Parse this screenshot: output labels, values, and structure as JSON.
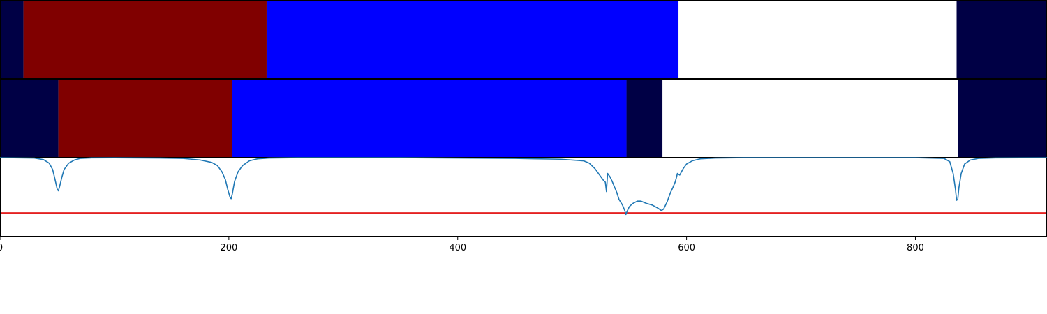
{
  "chart_data": [
    {
      "type": "heatmap",
      "name": "segmentation-a",
      "xlim": [
        0,
        915
      ],
      "segments": [
        {
          "start": 0,
          "end": 20.5,
          "color": "#000045"
        },
        {
          "start": 20.5,
          "end": 233,
          "color": "#800000"
        },
        {
          "start": 233,
          "end": 593,
          "color": "#0000ff"
        },
        {
          "start": 593,
          "end": 836,
          "color": "#ffffff"
        },
        {
          "start": 836,
          "end": 915,
          "color": "#000045"
        }
      ]
    },
    {
      "type": "heatmap",
      "name": "segmentation-b",
      "xlim": [
        0,
        915
      ],
      "segments": [
        {
          "start": 0,
          "end": 51,
          "color": "#000045"
        },
        {
          "start": 51,
          "end": 203,
          "color": "#800000"
        },
        {
          "start": 203,
          "end": 547.5,
          "color": "#0000ff"
        },
        {
          "start": 547.5,
          "end": 579,
          "color": "#000045"
        },
        {
          "start": 579,
          "end": 837.5,
          "color": "#ffffff"
        },
        {
          "start": 837.5,
          "end": 915,
          "color": "#000045"
        }
      ]
    },
    {
      "type": "line",
      "name": "boundary-score",
      "xlim": [
        0,
        915
      ],
      "ylim": [
        0,
        1
      ],
      "threshold": 0.3,
      "threshold_color": "#e00000",
      "line_color": "#1f77b4",
      "x": [
        0,
        30,
        38,
        43,
        46,
        48,
        50,
        51,
        52,
        54,
        56,
        60,
        65,
        70,
        80,
        100,
        140,
        160,
        175,
        185,
        190,
        194,
        197,
        199,
        201,
        202,
        203,
        205,
        208,
        212,
        218,
        225,
        235,
        260,
        350,
        450,
        490,
        510,
        515,
        520,
        522,
        525,
        527,
        529,
        530,
        531,
        533,
        535,
        537,
        539,
        541,
        544,
        546,
        547,
        548,
        550,
        553,
        557,
        560,
        565,
        570,
        575,
        578,
        580,
        583,
        586,
        588,
        590,
        591,
        592,
        594,
        597,
        600,
        605,
        612,
        625,
        650,
        700,
        800,
        825,
        830,
        833,
        835,
        836,
        837,
        838,
        840,
        843,
        848,
        855,
        870,
        915
      ],
      "y": [
        1.0,
        0.995,
        0.975,
        0.93,
        0.85,
        0.73,
        0.6,
        0.58,
        0.63,
        0.75,
        0.85,
        0.93,
        0.97,
        0.99,
        0.997,
        0.998,
        0.995,
        0.99,
        0.97,
        0.94,
        0.9,
        0.82,
        0.72,
        0.6,
        0.5,
        0.48,
        0.54,
        0.7,
        0.82,
        0.9,
        0.96,
        0.985,
        0.995,
        0.999,
        0.999,
        0.99,
        0.98,
        0.96,
        0.93,
        0.86,
        0.82,
        0.76,
        0.72,
        0.69,
        0.57,
        0.8,
        0.76,
        0.7,
        0.63,
        0.56,
        0.47,
        0.4,
        0.33,
        0.28,
        0.32,
        0.38,
        0.42,
        0.45,
        0.45,
        0.42,
        0.4,
        0.36,
        0.33,
        0.35,
        0.44,
        0.56,
        0.62,
        0.69,
        0.74,
        0.8,
        0.78,
        0.86,
        0.92,
        0.96,
        0.985,
        0.995,
        0.999,
        0.999,
        0.999,
        0.99,
        0.95,
        0.8,
        0.6,
        0.46,
        0.47,
        0.62,
        0.8,
        0.92,
        0.97,
        0.99,
        0.997,
        0.999
      ]
    }
  ],
  "axis": {
    "xticks": [
      0,
      200,
      400,
      600,
      800
    ],
    "xtick_labels": [
      "0",
      "200",
      "400",
      "600",
      "800"
    ]
  }
}
